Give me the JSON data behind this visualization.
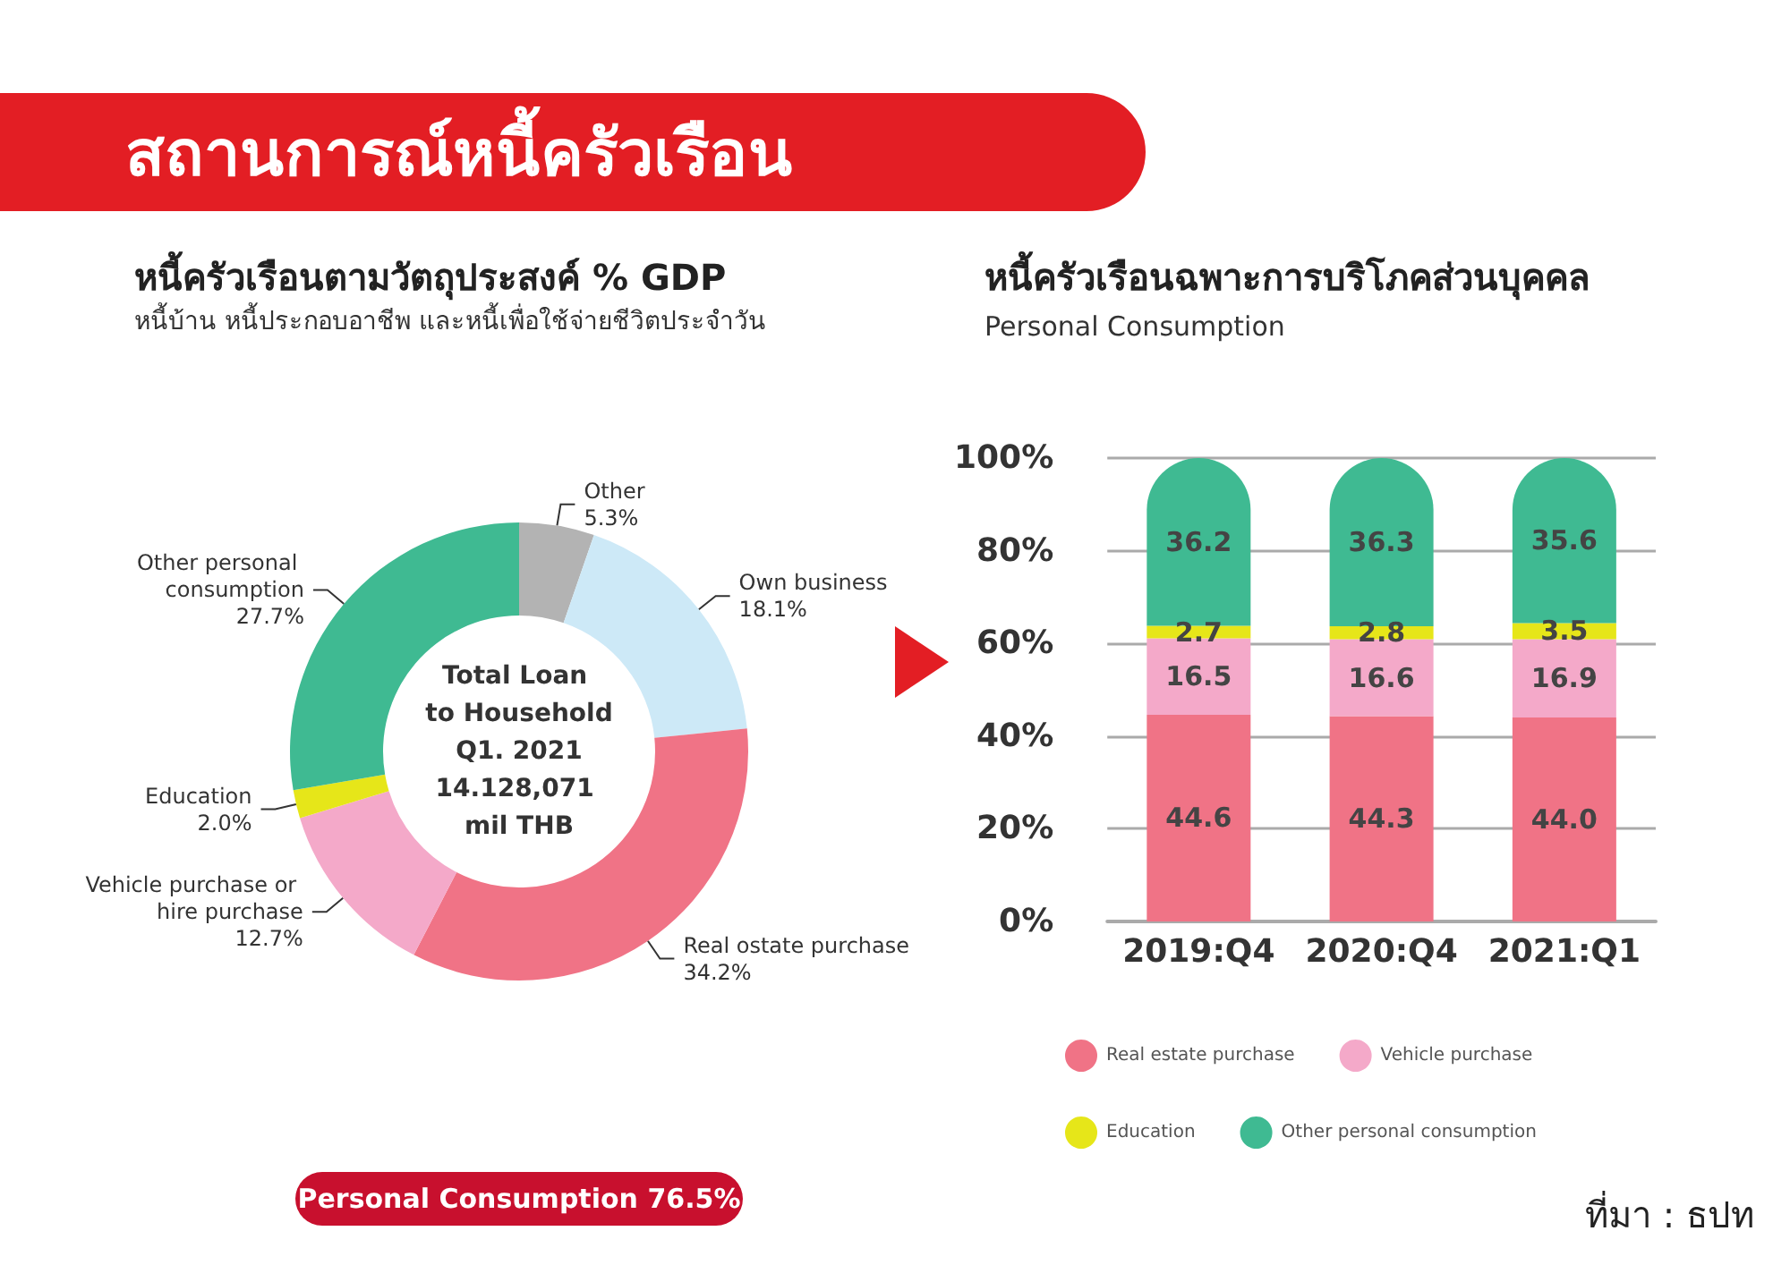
{
  "chart_data": [
    {
      "type": "donut",
      "title": "หนี้ครัวเรือนตามวัตถุประสงค์ % GDP",
      "subtitle": "หนี้บ้าน หนี้ประกอบอาชีพ และหนี้เพื่อใช้จ่ายชีวิตประจำวัน",
      "categories": [
        "Other",
        "Own business",
        "Real ostate purchase",
        "Vehicle purchase or hire purchase",
        "Education",
        "Other personal consumption"
      ],
      "values": [
        5.3,
        18.1,
        34.2,
        12.7,
        2.0,
        27.7
      ],
      "colors": [
        "#b3b3b3",
        "#cde9f7",
        "#f07386",
        "#f4a9c9",
        "#e6e619",
        "#3fba92"
      ],
      "value_labels": [
        "5.3%",
        "18.1%",
        "34.2%",
        "12.7%",
        "2.0%",
        "27.7%"
      ],
      "annotations": [
        "สถานการณ์หนี้ครัวเรือน",
        "Total Loan to Household Q1. 2021 14.128,071 mil THB",
        "Personal Consumption 76.5%"
      ]
    },
    {
      "type": "bar",
      "title": "หนี้ครัวเรือนฉพาะการบริโภคส่วนบุคคล",
      "subtitle": "Personal Consumption",
      "categories": [
        "2019:Q4",
        "2020:Q4",
        "2021:Q1"
      ],
      "stacked": true,
      "series": [
        {
          "name": "Real estate purchase",
          "color": "#f07386",
          "values": [
            44.6,
            44.3,
            44.0
          ],
          "value_labels": [
            "44.6",
            "44.3",
            "44.0"
          ]
        },
        {
          "name": "Vehicle purchase",
          "color": "#f4a9c9",
          "values": [
            16.5,
            16.6,
            16.9
          ],
          "value_labels": [
            "16.5",
            "16.6",
            "16.9"
          ]
        },
        {
          "name": "Education",
          "color": "#e6e619",
          "values": [
            2.7,
            2.8,
            3.5
          ],
          "value_labels": [
            "2.7",
            "2.8",
            "3.5"
          ]
        },
        {
          "name": "Other personal consumption",
          "color": "#3fba92",
          "values": [
            36.2,
            36.3,
            35.6
          ],
          "value_labels": [
            "36.2",
            "36.3",
            "35.6"
          ]
        }
      ],
      "ylim": [
        0,
        100
      ],
      "yticks": [
        {
          "value": 0,
          "label": "0%"
        },
        {
          "value": 20,
          "label": "20%"
        },
        {
          "value": 40,
          "label": "40%"
        },
        {
          "value": 60,
          "label": "60%"
        },
        {
          "value": 80,
          "label": "80%"
        },
        {
          "value": 100,
          "label": "100%"
        }
      ],
      "grid": "y",
      "legend": "bottom",
      "annotations": [
        "ที่มา : ธปท"
      ]
    }
  ]
}
